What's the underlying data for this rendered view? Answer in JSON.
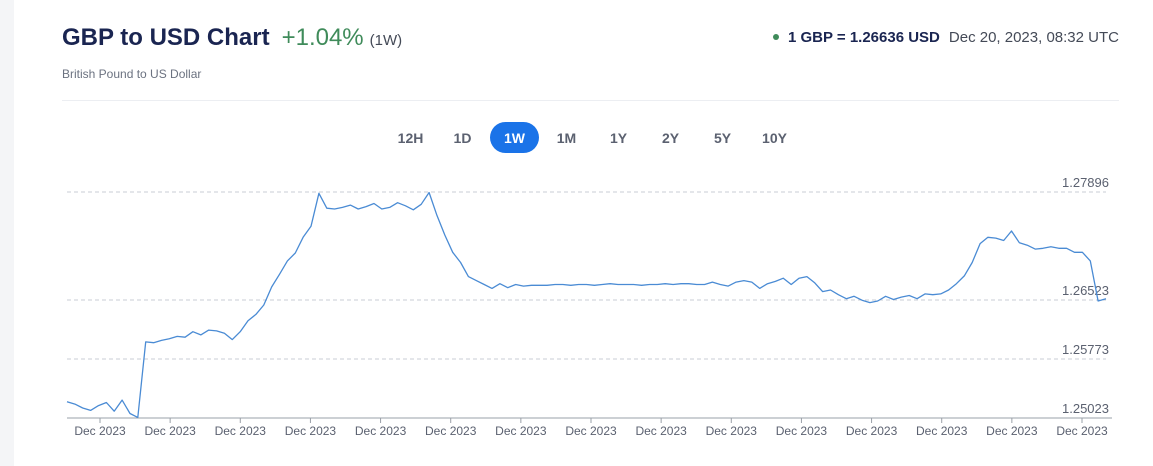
{
  "header": {
    "title": "GBP to USD Chart",
    "change": "+1.04%",
    "period": "(1W)",
    "subtitle": "British Pound to US Dollar",
    "rate": "1 GBP = 1.26636 USD",
    "timestamp": "Dec 20, 2023, 08:32 UTC"
  },
  "tabs": [
    "12H",
    "1D",
    "1W",
    "1M",
    "1Y",
    "2Y",
    "5Y",
    "10Y"
  ],
  "active_tab": "1W",
  "colors": {
    "line": "#4a8bd4",
    "accent": "#1a73e8",
    "positive": "#3f8b5a",
    "title": "#1a2551"
  },
  "chart_data": {
    "type": "line",
    "title": "",
    "xlabel": "",
    "ylabel": "",
    "ylim": [
      1.25023,
      1.27896
    ],
    "y_ticks": [
      1.27896,
      1.26523,
      1.25773,
      1.25023
    ],
    "y_tick_labels": [
      "1.27896",
      "1.26523",
      "1.25773",
      "1.25023"
    ],
    "x_tick_labels": [
      "Dec 2023",
      "Dec 2023",
      "Dec 2023",
      "Dec 2023",
      "Dec 2023",
      "Dec 2023",
      "Dec 2023",
      "Dec 2023",
      "Dec 2023",
      "Dec 2023",
      "Dec 2023",
      "Dec 2023",
      "Dec 2023",
      "Dec 2023",
      "Dec 2023"
    ],
    "grid": true,
    "series": [
      {
        "values": [
          1.2523,
          1.252,
          1.2515,
          1.2512,
          1.2518,
          1.2522,
          1.2511,
          1.2525,
          1.2508,
          1.2503,
          1.2599,
          1.2598,
          1.2601,
          1.2603,
          1.2606,
          1.2605,
          1.2612,
          1.2608,
          1.2614,
          1.2613,
          1.261,
          1.2602,
          1.2612,
          1.2626,
          1.2634,
          1.2646,
          1.2669,
          1.2685,
          1.2702,
          1.2712,
          1.2732,
          1.2746,
          1.2788,
          1.2769,
          1.2768,
          1.277,
          1.2773,
          1.2768,
          1.2771,
          1.2775,
          1.2768,
          1.277,
          1.2776,
          1.2772,
          1.2767,
          1.2774,
          1.2789,
          1.276,
          1.2735,
          1.2713,
          1.27,
          1.2682,
          1.2677,
          1.2672,
          1.2667,
          1.2673,
          1.2668,
          1.2672,
          1.267,
          1.2671,
          1.2671,
          1.2671,
          1.2672,
          1.2672,
          1.2671,
          1.2672,
          1.2672,
          1.2671,
          1.2672,
          1.2673,
          1.2672,
          1.2672,
          1.2672,
          1.2671,
          1.2672,
          1.2672,
          1.2673,
          1.2672,
          1.2673,
          1.2673,
          1.2672,
          1.2672,
          1.2675,
          1.2672,
          1.267,
          1.2675,
          1.2677,
          1.2675,
          1.2667,
          1.2673,
          1.2676,
          1.268,
          1.2672,
          1.268,
          1.2682,
          1.2674,
          1.2663,
          1.2665,
          1.2659,
          1.2654,
          1.2657,
          1.2652,
          1.2649,
          1.2651,
          1.2657,
          1.2653,
          1.2656,
          1.2658,
          1.2654,
          1.266,
          1.2659,
          1.266,
          1.2665,
          1.2673,
          1.2683,
          1.27,
          1.2724,
          1.2732,
          1.2731,
          1.2728,
          1.274,
          1.2725,
          1.2722,
          1.2717,
          1.2718,
          1.272,
          1.2718,
          1.2718,
          1.2713,
          1.2713,
          1.2702,
          1.2651,
          1.2654
        ]
      }
    ]
  }
}
